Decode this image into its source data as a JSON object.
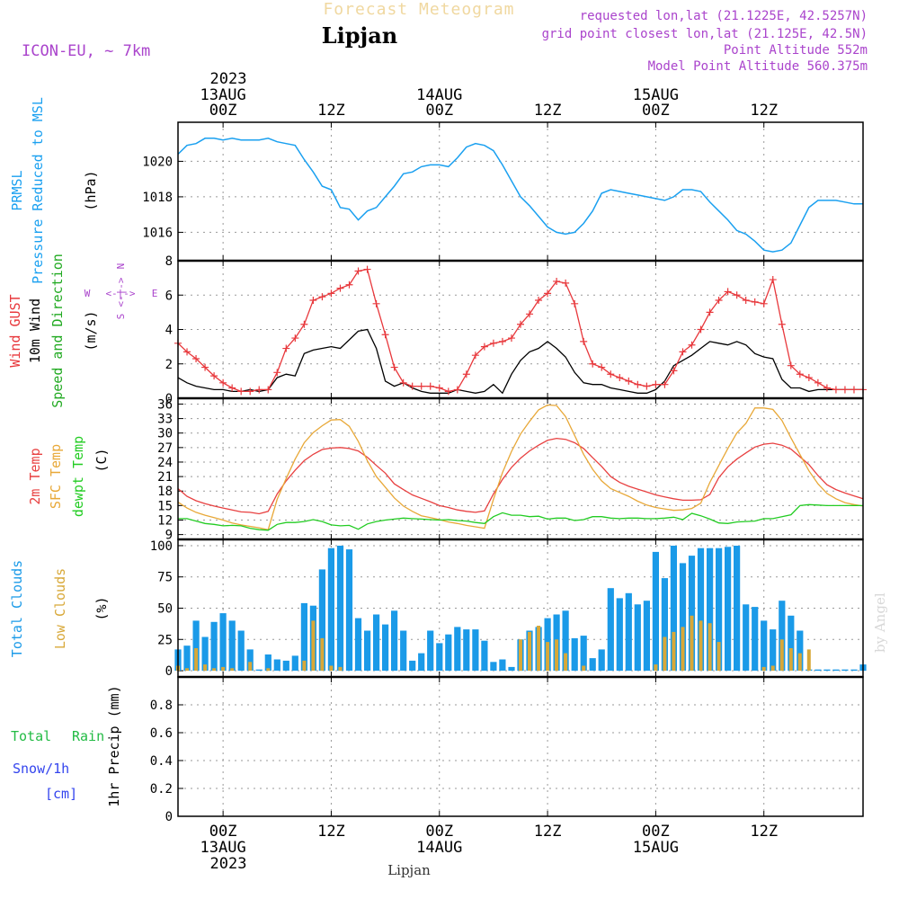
{
  "header": {
    "banner": "Forecast Meteogram",
    "model": "ICON-EU, ~ 7km",
    "location": "Lipjan",
    "requested": "requested lon,lat (21.1225E, 42.5257N)",
    "closest": "grid point closest lon,lat (21.125E, 42.5N)",
    "altitude": "Point Altitude 552m",
    "model_altitude": "Model Point Altitude 560.375m",
    "footer_location": "Lipjan",
    "watermark": "by Angel"
  },
  "time_axis": {
    "hours": [
      0,
      12,
      24,
      36,
      48,
      60
    ],
    "labels": [
      "00Z",
      "12Z",
      "00Z",
      "12Z",
      "00Z",
      "12Z"
    ],
    "dates": [
      {
        "hour": 0,
        "label": "13AUG"
      },
      {
        "hour": 24,
        "label": "14AUG"
      },
      {
        "hour": 48,
        "label": "15AUG"
      }
    ],
    "year": "2023",
    "range": [
      -5,
      71
    ]
  },
  "colors": {
    "prmsl": "#1aa0f0",
    "gust": "#e8383c",
    "wind": "#000000",
    "wind_dir_label": "#22aa22",
    "temp2m": "#e84040",
    "sfc_temp": "#e8a838",
    "dewpt": "#22cc22",
    "total_clouds": "#1a9ae8",
    "low_clouds": "#d8a838",
    "rain": "#22bb44",
    "snow": "#3344ee",
    "header_purple": "#aa44cc",
    "banner": "#f0d8a0"
  },
  "chart_data": [
    {
      "type": "line",
      "title": "Pressure Reduced to MSL",
      "legend": [
        "PRMSL",
        "Pressure Reduced to MSL"
      ],
      "ylabel": "(hPa)",
      "ylim": [
        1014.4,
        1022.2
      ],
      "yticks": [
        1016,
        1018,
        1020
      ],
      "x": [
        -5,
        -4,
        -3,
        -2,
        -1,
        0,
        1,
        2,
        3,
        4,
        5,
        6,
        7,
        8,
        9,
        10,
        11,
        12,
        13,
        14,
        15,
        16,
        17,
        18,
        19,
        20,
        21,
        22,
        23,
        24,
        25,
        26,
        27,
        28,
        29,
        30,
        31,
        32,
        33,
        34,
        35,
        36,
        37,
        38,
        39,
        40,
        41,
        42,
        43,
        44,
        45,
        46,
        47,
        48,
        49,
        50,
        51,
        52,
        53,
        54,
        55,
        56,
        57,
        58,
        59,
        60,
        61,
        62,
        63,
        64,
        65,
        66,
        67,
        68,
        69,
        70,
        71
      ],
      "values": [
        1020.4,
        1020.9,
        1021.0,
        1021.3,
        1021.3,
        1021.2,
        1021.3,
        1021.2,
        1021.2,
        1021.2,
        1021.3,
        1021.1,
        1021.0,
        1020.9,
        1020.1,
        1019.4,
        1018.6,
        1018.4,
        1017.4,
        1017.3,
        1016.7,
        1017.2,
        1017.4,
        1018.0,
        1018.6,
        1019.3,
        1019.4,
        1019.7,
        1019.8,
        1019.8,
        1019.7,
        1020.2,
        1020.8,
        1021.0,
        1020.9,
        1020.6,
        1019.8,
        1018.9,
        1018.0,
        1017.5,
        1016.9,
        1016.3,
        1016.0,
        1015.9,
        1016.0,
        1016.5,
        1017.2,
        1018.2,
        1018.4,
        1018.3,
        1018.2,
        1018.1,
        1018.0,
        1017.9,
        1017.8,
        1018.0,
        1018.4,
        1018.4,
        1018.3,
        1017.7,
        1017.2,
        1016.7,
        1016.1,
        1015.9,
        1015.5,
        1015.0,
        1014.9,
        1015.0,
        1015.4,
        1016.4,
        1017.4,
        1017.8,
        1017.8,
        1017.8,
        1017.7,
        1017.6,
        1017.6
      ]
    },
    {
      "type": "line",
      "title": "Wind",
      "legend": [
        "Wind GUST",
        "10m Wind",
        "Speed and Direction"
      ],
      "ylabel": "(m/s)",
      "compass": {
        "w": "W",
        "e": "E",
        "n": "N",
        "s": "S",
        "arrow": "<-|->"
      },
      "ylim": [
        0,
        8
      ],
      "yticks": [
        0,
        2,
        4,
        6,
        8
      ],
      "x": [
        -5,
        -4,
        -3,
        -2,
        -1,
        0,
        1,
        2,
        3,
        4,
        5,
        6,
        7,
        8,
        9,
        10,
        11,
        12,
        13,
        14,
        15,
        16,
        17,
        18,
        19,
        20,
        21,
        22,
        23,
        24,
        25,
        26,
        27,
        28,
        29,
        30,
        31,
        32,
        33,
        34,
        35,
        36,
        37,
        38,
        39,
        40,
        41,
        42,
        43,
        44,
        45,
        46,
        47,
        48,
        49,
        50,
        51,
        52,
        53,
        54,
        55,
        56,
        57,
        58,
        59,
        60,
        61,
        62,
        63,
        64,
        65,
        66,
        67,
        68,
        69,
        70,
        71
      ],
      "series": [
        {
          "name": "Wind GUST",
          "values": [
            3.2,
            2.7,
            2.3,
            1.8,
            1.3,
            0.9,
            0.6,
            0.4,
            0.4,
            0.5,
            0.5,
            1.5,
            2.9,
            3.5,
            4.3,
            5.7,
            5.9,
            6.1,
            6.4,
            6.6,
            7.4,
            7.5,
            5.5,
            3.7,
            1.8,
            0.9,
            0.7,
            0.7,
            0.7,
            0.6,
            0.4,
            0.5,
            1.4,
            2.5,
            3.0,
            3.2,
            3.3,
            3.5,
            4.3,
            4.9,
            5.7,
            6.1,
            6.8,
            6.7,
            5.5,
            3.3,
            2.0,
            1.8,
            1.4,
            1.2,
            1.0,
            0.8,
            0.7,
            0.8,
            0.8,
            1.6,
            2.7,
            3.1,
            4.0,
            5.0,
            5.7,
            6.2,
            6.0,
            5.7,
            5.6,
            5.5,
            6.9,
            4.3,
            1.9,
            1.4,
            1.2,
            0.9,
            0.6,
            0.5,
            0.5,
            0.5,
            0.5
          ]
        },
        {
          "name": "10m Wind",
          "values": [
            1.2,
            0.9,
            0.7,
            0.6,
            0.5,
            0.5,
            0.4,
            0.4,
            0.5,
            0.4,
            0.5,
            1.2,
            1.4,
            1.3,
            2.6,
            2.8,
            2.9,
            3.0,
            2.9,
            3.4,
            3.9,
            4.0,
            2.9,
            1.0,
            0.7,
            0.9,
            0.6,
            0.4,
            0.3,
            0.3,
            0.3,
            0.5,
            0.4,
            0.3,
            0.4,
            0.8,
            0.3,
            1.4,
            2.2,
            2.7,
            2.9,
            3.3,
            2.9,
            2.4,
            1.5,
            0.9,
            0.8,
            0.8,
            0.6,
            0.5,
            0.4,
            0.3,
            0.3,
            0.5,
            1.0,
            1.9,
            2.2,
            2.5,
            2.9,
            3.3,
            3.2,
            3.1,
            3.3,
            3.1,
            2.6,
            2.4,
            2.3,
            1.1,
            0.6,
            0.6,
            0.4,
            0.5,
            0.5,
            0.5,
            0.5,
            0.5,
            0.5
          ]
        }
      ]
    },
    {
      "type": "line",
      "title": "Temperature",
      "legend": [
        "2m Temp",
        "SFC Temp",
        "dewpt Temp"
      ],
      "ylabel": "(C)",
      "ylim": [
        8,
        37.2
      ],
      "yticks": [
        9,
        12,
        15,
        18,
        21,
        24,
        27,
        30,
        33,
        36
      ],
      "x": [
        -5,
        -4,
        -3,
        -2,
        -1,
        0,
        1,
        2,
        3,
        4,
        5,
        6,
        7,
        8,
        9,
        10,
        11,
        12,
        13,
        14,
        15,
        16,
        17,
        18,
        19,
        20,
        21,
        22,
        23,
        24,
        25,
        26,
        27,
        28,
        29,
        30,
        31,
        32,
        33,
        34,
        35,
        36,
        37,
        38,
        39,
        40,
        41,
        42,
        43,
        44,
        45,
        46,
        47,
        48,
        49,
        50,
        51,
        52,
        53,
        54,
        55,
        56,
        57,
        58,
        59,
        60,
        61,
        62,
        63,
        64,
        65,
        66,
        67,
        68,
        69,
        70,
        71
      ],
      "series": [
        {
          "name": "2m Temp",
          "values": [
            18.5,
            16.9,
            16.0,
            15.4,
            14.9,
            14.5,
            14.1,
            13.7,
            13.6,
            13.3,
            13.8,
            17.4,
            20.1,
            22.3,
            24.3,
            25.6,
            26.6,
            26.9,
            27.0,
            26.8,
            26.3,
            25.0,
            23.3,
            21.7,
            19.5,
            18.3,
            17.2,
            16.5,
            15.8,
            15.0,
            14.6,
            14.1,
            13.8,
            13.6,
            13.9,
            17.4,
            20.4,
            22.9,
            24.8,
            26.3,
            27.5,
            28.5,
            28.9,
            28.7,
            28.0,
            26.8,
            24.9,
            23.1,
            21.0,
            19.8,
            19.0,
            18.4,
            17.8,
            17.2,
            16.8,
            16.4,
            16.1,
            16.1,
            16.2,
            17.3,
            20.8,
            23.0,
            24.6,
            25.9,
            27.1,
            27.7,
            27.9,
            27.5,
            26.7,
            25.1,
            23.5,
            21.2,
            19.3,
            18.3,
            17.6,
            17.0,
            16.4
          ]
        },
        {
          "name": "SFC Temp",
          "values": [
            15.7,
            14.5,
            13.6,
            13.0,
            12.5,
            12.0,
            11.4,
            11.0,
            10.7,
            10.4,
            10.0,
            16.3,
            20.6,
            24.6,
            28.0,
            30.1,
            31.5,
            32.7,
            32.8,
            31.4,
            28.3,
            24.3,
            21.0,
            18.8,
            16.6,
            14.9,
            13.8,
            12.9,
            12.5,
            12.1,
            11.6,
            11.3,
            10.9,
            10.6,
            10.3,
            16.3,
            21.8,
            26.2,
            29.8,
            32.4,
            34.8,
            35.8,
            35.7,
            33.4,
            29.5,
            25.6,
            22.5,
            20.1,
            18.5,
            17.7,
            16.9,
            15.9,
            15.1,
            14.6,
            14.3,
            14.0,
            14.1,
            14.4,
            15.5,
            19.8,
            23.3,
            26.8,
            30.0,
            32.0,
            35.2,
            35.2,
            34.9,
            32.6,
            29.0,
            25.6,
            22.2,
            19.5,
            17.5,
            16.4,
            15.6,
            15.2,
            14.9
          ]
        },
        {
          "name": "dewpt Temp",
          "values": [
            12.3,
            12.3,
            11.8,
            11.3,
            11.1,
            10.8,
            10.9,
            10.8,
            10.3,
            10.0,
            9.9,
            11.1,
            11.5,
            11.5,
            11.7,
            12.1,
            11.7,
            11.0,
            10.8,
            10.9,
            10.1,
            11.2,
            11.7,
            12.0,
            12.2,
            12.4,
            12.3,
            12.2,
            12.1,
            12.0,
            12.1,
            11.9,
            11.8,
            11.5,
            11.3,
            12.7,
            13.5,
            13.0,
            13.0,
            12.7,
            12.8,
            12.2,
            12.4,
            12.4,
            11.9,
            12.1,
            12.7,
            12.7,
            12.4,
            12.3,
            12.4,
            12.4,
            12.3,
            12.3,
            12.4,
            12.6,
            12.1,
            13.4,
            12.9,
            12.2,
            11.4,
            11.3,
            11.6,
            11.7,
            11.8,
            12.3,
            12.3,
            12.7,
            13.1,
            15.0,
            15.2,
            15.1,
            15.0,
            15.0,
            15.0,
            15.0,
            15.0
          ]
        }
      ]
    },
    {
      "type": "bar",
      "title": "Clouds",
      "legend": [
        "Total Clouds",
        "Low Clouds"
      ],
      "ylabel": "(%)",
      "ylim": [
        -5,
        105
      ],
      "yticks": [
        0,
        25,
        50,
        75,
        100
      ],
      "x": [
        -5,
        -4,
        -3,
        -2,
        -1,
        0,
        1,
        2,
        3,
        4,
        5,
        6,
        7,
        8,
        9,
        10,
        11,
        12,
        13,
        14,
        15,
        16,
        17,
        18,
        19,
        20,
        21,
        22,
        23,
        24,
        25,
        26,
        27,
        28,
        29,
        30,
        31,
        32,
        33,
        34,
        35,
        36,
        37,
        38,
        39,
        40,
        41,
        42,
        43,
        44,
        45,
        46,
        47,
        48,
        49,
        50,
        51,
        52,
        53,
        54,
        55,
        56,
        57,
        58,
        59,
        60,
        61,
        62,
        63,
        64,
        65,
        66,
        67,
        68,
        69,
        70,
        71
      ],
      "series": [
        {
          "name": "Total Clouds",
          "values": [
            17,
            20,
            40,
            27,
            39,
            46,
            40,
            32,
            17,
            1,
            13,
            9,
            8,
            12,
            54,
            52,
            81,
            98,
            100,
            97,
            42,
            32,
            45,
            37,
            48,
            32,
            8,
            14,
            32,
            22,
            29,
            35,
            33,
            33,
            24,
            7,
            9,
            3,
            25,
            32,
            35,
            42,
            45,
            48,
            26,
            28,
            10,
            17,
            66,
            58,
            62,
            53,
            56,
            95,
            74,
            100,
            86,
            92,
            98,
            98,
            98,
            99,
            100,
            53,
            51,
            40,
            33,
            56,
            44,
            32,
            1,
            1,
            1,
            1,
            1,
            1,
            5
          ]
        },
        {
          "name": "Low Clouds",
          "values": [
            4,
            2,
            18,
            5,
            2,
            3,
            2,
            0,
            7,
            0,
            2,
            0,
            0,
            0,
            8,
            40,
            26,
            4,
            3,
            0,
            0,
            0,
            0,
            0,
            0,
            0,
            0,
            0,
            0,
            0,
            0,
            0,
            0,
            0,
            0,
            0,
            0,
            0,
            25,
            31,
            36,
            23,
            25,
            14,
            0,
            4,
            0,
            0,
            0,
            0,
            0,
            0,
            0,
            5,
            27,
            31,
            35,
            44,
            40,
            38,
            23,
            0,
            0,
            0,
            0,
            3,
            4,
            25,
            18,
            14,
            17,
            0,
            0,
            0,
            0,
            0,
            0
          ]
        }
      ]
    },
    {
      "type": "bar",
      "title": "1hr Precip",
      "legend": [
        "Total",
        "Rain",
        "Snow/1h",
        "[cm]"
      ],
      "ylabel": "1hr Precip (mm)",
      "ylim": [
        0,
        1.0
      ],
      "yticks": [
        0,
        0.2,
        0.4,
        0.6,
        0.8
      ],
      "ytick_labels": [
        "0",
        "0.2",
        "0.4",
        "0.6",
        "0.8"
      ],
      "x": [],
      "values": []
    }
  ]
}
